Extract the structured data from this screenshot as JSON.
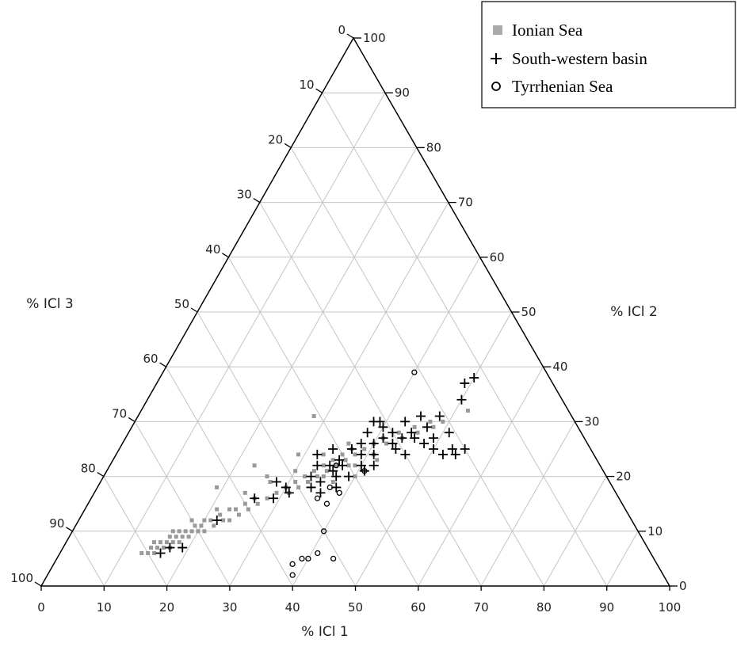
{
  "chart_data": {
    "type": "ternary-scatter",
    "axes": {
      "bottom": {
        "label": "% ICl 1",
        "ticks": [
          "0",
          "10",
          "20",
          "30",
          "40",
          "50",
          "60",
          "70",
          "80",
          "90",
          "100"
        ]
      },
      "right": {
        "label": "% ICl 2",
        "ticks": [
          "0",
          "10",
          "20",
          "30",
          "40",
          "50",
          "60",
          "70",
          "80",
          "90",
          "100"
        ]
      },
      "left": {
        "label": "% ICl 3",
        "ticks": [
          "0",
          "10",
          "20",
          "30",
          "40",
          "50",
          "60",
          "70",
          "80",
          "90",
          "100"
        ]
      }
    },
    "range": [
      0,
      100
    ],
    "grid": true,
    "grid_step": 10,
    "legend_position": "top-right",
    "series": [
      {
        "name": "Ionian Sea",
        "marker": "square",
        "color": "#999999",
        "points": [
          [
            13,
            6
          ],
          [
            14,
            6
          ],
          [
            14,
            7
          ],
          [
            15,
            6
          ],
          [
            15,
            7
          ],
          [
            15,
            8
          ],
          [
            16,
            7
          ],
          [
            16,
            8
          ],
          [
            16,
            9
          ],
          [
            17,
            7
          ],
          [
            17,
            8
          ],
          [
            17,
            9
          ],
          [
            17,
            10
          ],
          [
            18,
            8
          ],
          [
            18,
            9
          ],
          [
            18,
            10
          ],
          [
            19,
            9
          ],
          [
            19,
            10
          ],
          [
            19,
            11
          ],
          [
            20,
            10
          ],
          [
            20,
            11
          ],
          [
            20,
            12
          ],
          [
            21,
            10
          ],
          [
            21,
            12
          ],
          [
            22,
            11
          ],
          [
            22,
            13
          ],
          [
            23,
            12
          ],
          [
            23,
            14
          ],
          [
            24,
            12
          ],
          [
            24,
            14
          ],
          [
            25,
            13
          ],
          [
            25,
            15
          ],
          [
            26,
            14
          ],
          [
            26,
            16
          ],
          [
            27,
            15
          ],
          [
            28,
            16
          ],
          [
            29,
            17
          ],
          [
            30,
            18
          ],
          [
            31,
            17
          ],
          [
            31,
            19
          ],
          [
            32,
            18
          ],
          [
            32,
            20
          ],
          [
            33,
            19
          ],
          [
            33,
            21
          ],
          [
            34,
            20
          ],
          [
            34,
            22
          ],
          [
            35,
            21
          ],
          [
            35,
            23
          ],
          [
            36,
            22
          ],
          [
            36,
            24
          ],
          [
            37,
            23
          ],
          [
            37,
            25
          ],
          [
            38,
            22
          ],
          [
            38,
            24
          ],
          [
            39,
            25
          ],
          [
            40,
            26
          ],
          [
            41,
            24
          ],
          [
            41,
            27
          ],
          [
            42,
            26
          ],
          [
            43,
            28
          ],
          [
            44,
            27
          ],
          [
            45,
            29
          ],
          [
            46,
            28
          ],
          [
            47,
            30
          ],
          [
            48,
            29
          ],
          [
            49,
            30
          ],
          [
            52,
            32
          ],
          [
            28,
            31
          ],
          [
            23,
            22
          ],
          [
            19,
            18
          ],
          [
            26,
            20
          ],
          [
            29,
            24
          ],
          [
            30,
            21
          ],
          [
            33,
            24
          ],
          [
            35,
            20
          ],
          [
            37,
            19
          ],
          [
            39,
            22
          ],
          [
            40,
            20
          ],
          [
            42,
            23
          ],
          [
            36,
            26
          ],
          [
            14,
            8
          ],
          [
            16,
            10
          ],
          [
            18,
            12
          ],
          [
            21,
            14
          ],
          [
            24,
            17
          ],
          [
            27,
            19
          ]
        ]
      },
      {
        "name": "South-western basin",
        "marker": "cross",
        "color": "#000000",
        "points": [
          [
            16,
            6
          ],
          [
            17,
            7
          ],
          [
            19,
            7
          ],
          [
            22,
            12
          ],
          [
            26,
            16
          ],
          [
            28,
            19
          ],
          [
            29,
            16
          ],
          [
            31,
            17
          ],
          [
            33,
            20
          ],
          [
            32,
            24
          ],
          [
            34,
            25
          ],
          [
            35,
            19
          ],
          [
            36,
            21
          ],
          [
            36,
            23
          ],
          [
            37,
            25
          ],
          [
            38,
            26
          ],
          [
            38,
            28
          ],
          [
            39,
            24
          ],
          [
            40,
            26
          ],
          [
            40,
            29
          ],
          [
            41,
            27
          ],
          [
            41,
            24
          ],
          [
            42,
            28
          ],
          [
            42,
            22
          ],
          [
            43,
            26
          ],
          [
            43,
            30
          ],
          [
            44,
            27
          ],
          [
            44,
            25
          ],
          [
            45,
            28
          ],
          [
            45,
            31
          ],
          [
            46,
            27
          ],
          [
            47,
            29
          ],
          [
            48,
            26
          ],
          [
            49,
            27
          ],
          [
            50,
            25
          ],
          [
            51,
            28
          ],
          [
            52,
            24
          ],
          [
            53,
            25
          ],
          [
            54,
            24
          ],
          [
            55,
            25
          ],
          [
            48,
            31
          ],
          [
            50,
            34
          ],
          [
            49,
            37
          ],
          [
            50,
            38
          ],
          [
            38,
            30
          ],
          [
            39,
            30
          ],
          [
            37,
            22
          ],
          [
            38,
            18
          ],
          [
            39,
            20
          ],
          [
            36,
            17
          ],
          [
            34,
            18
          ],
          [
            40,
            22
          ],
          [
            41,
            21
          ],
          [
            37,
            20
          ],
          [
            35,
            22
          ],
          [
            46,
            24
          ],
          [
            33,
            22
          ],
          [
            30,
            18
          ]
        ]
      },
      {
        "name": "Tyrrhenian Sea",
        "marker": "circle",
        "color": "#000000",
        "points": [
          [
            40,
            39
          ],
          [
            38,
            15
          ],
          [
            36,
            22
          ],
          [
            36,
            16
          ],
          [
            40,
            10
          ],
          [
            39,
            5
          ],
          [
            38,
            4
          ],
          [
            41,
            6
          ],
          [
            40,
            5
          ],
          [
            44,
            5
          ],
          [
            39,
            2
          ],
          [
            39,
            17
          ],
          [
            37,
            18
          ],
          [
            41,
            21
          ]
        ]
      }
    ]
  }
}
